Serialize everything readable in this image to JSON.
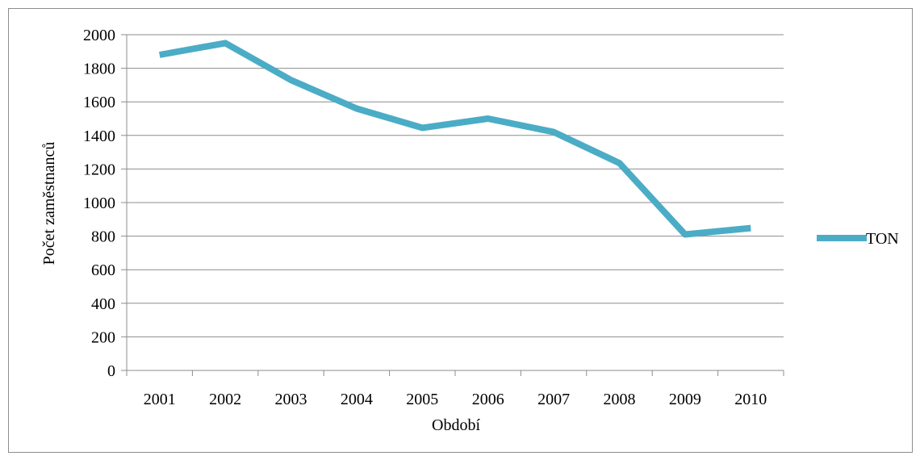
{
  "chart_data": {
    "type": "line",
    "x": [
      "2001",
      "2002",
      "2003",
      "2004",
      "2005",
      "2006",
      "2007",
      "2008",
      "2009",
      "2010"
    ],
    "series": [
      {
        "name": "TON",
        "values": [
          1880,
          1950,
          1730,
          1560,
          1445,
          1500,
          1420,
          1235,
          810,
          848
        ],
        "color": "#4bacc6"
      }
    ],
    "xlabel": "Období",
    "ylabel": "Počet zaměstnanců",
    "ylim": [
      0,
      2000
    ],
    "yticks": [
      0,
      200,
      400,
      600,
      800,
      1000,
      1200,
      1400,
      1600,
      1800,
      2000
    ],
    "grid": true,
    "legend": "right"
  }
}
